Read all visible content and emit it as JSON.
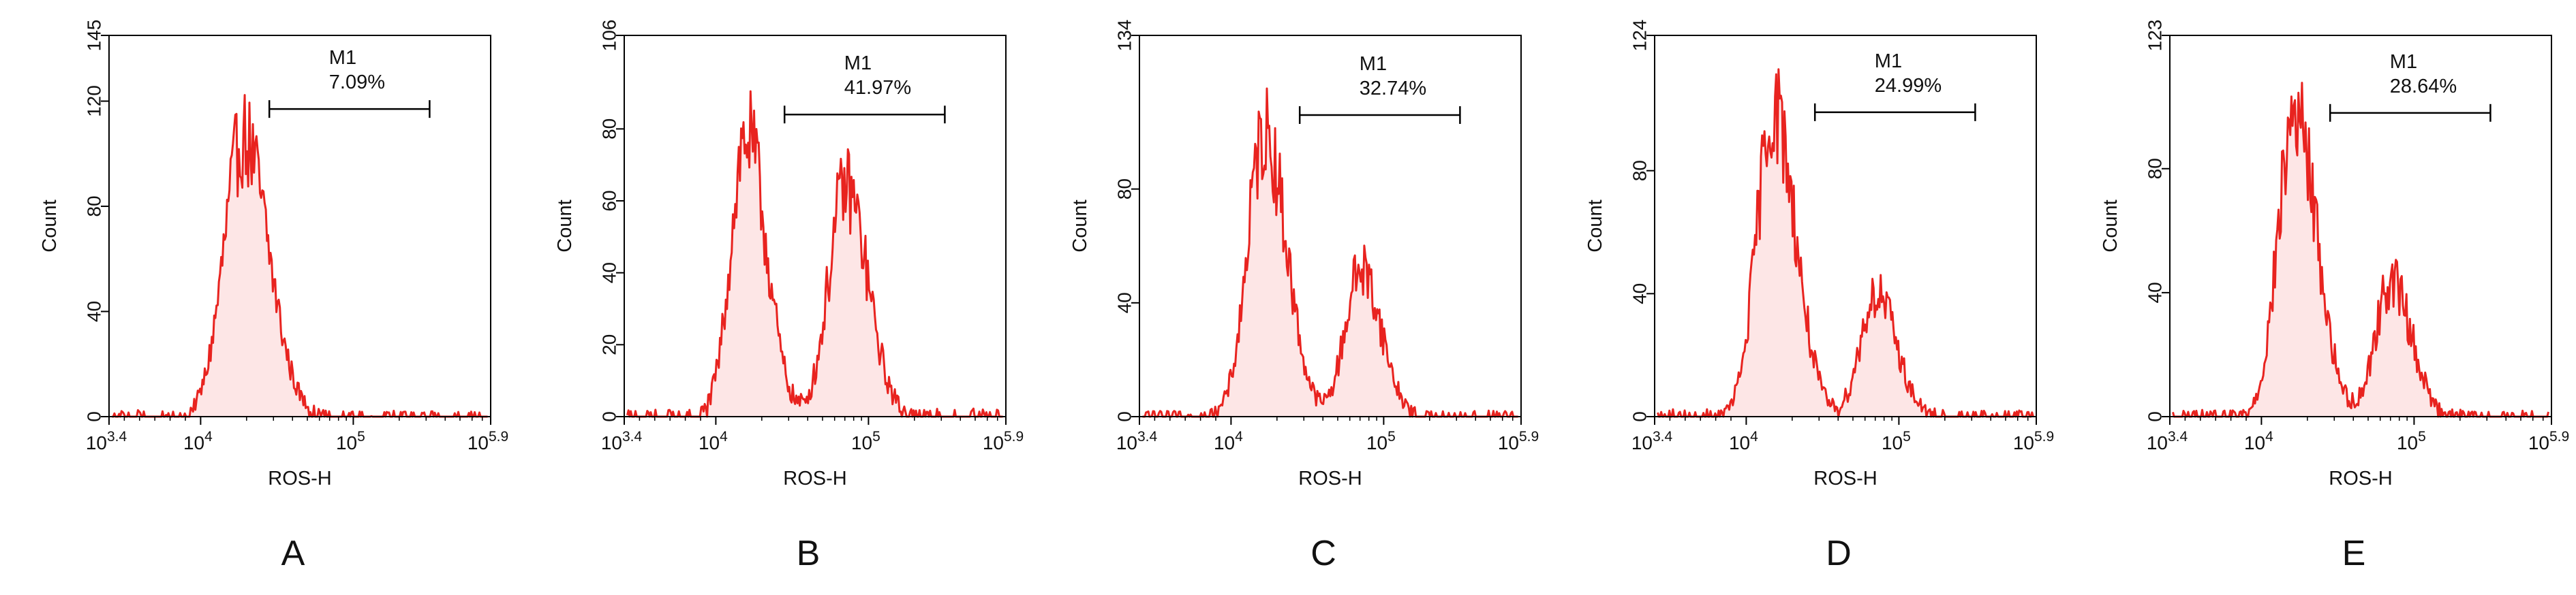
{
  "figure": {
    "colors": {
      "line": "#e8231f",
      "fill": "#fde6e6",
      "axis": "#000000"
    }
  },
  "chart_data": [
    {
      "type": "area",
      "panel_label": "A",
      "xlabel": "ROS-H",
      "ylabel": "Count",
      "x_scale": "log",
      "xlim_exp": [
        3.4,
        5.9
      ],
      "x_ticks": [
        {
          "base": "10",
          "exp": "3.4"
        },
        {
          "base": "10",
          "exp": "4"
        },
        {
          "base": "10",
          "exp": "5"
        },
        {
          "base": "10",
          "exp": "5.9"
        }
      ],
      "ylim": [
        0,
        145
      ],
      "y_ticks": [
        0,
        40,
        80,
        120,
        145
      ],
      "gate": {
        "name": "M1",
        "percent": "7.09%",
        "x_exp": [
          4.45,
          5.5
        ],
        "y": 117
      },
      "series": [
        {
          "peaks": [
            {
              "x_exp": 4.28,
              "height": 106,
              "width": 0.15
            }
          ],
          "max": 133
        }
      ]
    },
    {
      "type": "area",
      "panel_label": "B",
      "xlabel": "ROS-H",
      "ylabel": "Count",
      "x_scale": "log",
      "xlim_exp": [
        3.4,
        5.9
      ],
      "x_ticks": [
        {
          "base": "10",
          "exp": "3.4"
        },
        {
          "base": "10",
          "exp": "4"
        },
        {
          "base": "10",
          "exp": "5"
        },
        {
          "base": "10",
          "exp": "5.9"
        }
      ],
      "ylim": [
        0,
        106
      ],
      "y_ticks": [
        0,
        20,
        40,
        60,
        80,
        106
      ],
      "gate": {
        "name": "M1",
        "percent": "41.97%",
        "x_exp": [
          4.45,
          5.5
        ],
        "y": 84
      },
      "series": [
        {
          "peaks": [
            {
              "x_exp": 4.2,
              "height": 78,
              "width": 0.12
            },
            {
              "x_exp": 4.85,
              "height": 64,
              "width": 0.13
            }
          ],
          "max": 94
        }
      ]
    },
    {
      "type": "area",
      "panel_label": "C",
      "xlabel": "ROS-H",
      "ylabel": "Count",
      "x_scale": "log",
      "xlim_exp": [
        3.4,
        5.9
      ],
      "x_ticks": [
        {
          "base": "10",
          "exp": "3.4"
        },
        {
          "base": "10",
          "exp": "4"
        },
        {
          "base": "10",
          "exp": "5"
        },
        {
          "base": "10",
          "exp": "5.9"
        }
      ],
      "ylim": [
        0,
        134
      ],
      "y_ticks": [
        0,
        40,
        80,
        134
      ],
      "gate": {
        "name": "M1",
        "percent": "32.74%",
        "x_exp": [
          4.45,
          5.5
        ],
        "y": 106
      },
      "series": [
        {
          "peaks": [
            {
              "x_exp": 4.22,
              "height": 100,
              "width": 0.13
            },
            {
              "x_exp": 4.85,
              "height": 52,
              "width": 0.12
            }
          ],
          "max": 122
        }
      ]
    },
    {
      "type": "area",
      "panel_label": "D",
      "xlabel": "ROS-H",
      "ylabel": "Count",
      "x_scale": "log",
      "xlim_exp": [
        3.4,
        5.9
      ],
      "x_ticks": [
        {
          "base": "10",
          "exp": "3.4"
        },
        {
          "base": "10",
          "exp": "4"
        },
        {
          "base": "10",
          "exp": "5"
        },
        {
          "base": "10",
          "exp": "5.9"
        }
      ],
      "ylim": [
        0,
        124
      ],
      "y_ticks": [
        0,
        40,
        80,
        124
      ],
      "gate": {
        "name": "M1",
        "percent": "24.99%",
        "x_exp": [
          4.45,
          5.5
        ],
        "y": 99
      },
      "series": [
        {
          "peaks": [
            {
              "x_exp": 4.18,
              "height": 100,
              "width": 0.13
            },
            {
              "x_exp": 4.85,
              "height": 40,
              "width": 0.12
            }
          ],
          "max": 113
        }
      ]
    },
    {
      "type": "area",
      "panel_label": "E",
      "xlabel": "ROS-H",
      "ylabel": "Count",
      "x_scale": "log",
      "xlim_exp": [
        3.4,
        5.9
      ],
      "x_ticks": [
        {
          "base": "10",
          "exp": "3.4"
        },
        {
          "base": "10",
          "exp": "4"
        },
        {
          "base": "10",
          "exp": "5"
        },
        {
          "base": "10",
          "exp": "5.9"
        }
      ],
      "ylim": [
        0,
        123
      ],
      "y_ticks": [
        0,
        40,
        80,
        123
      ],
      "gate": {
        "name": "M1",
        "percent": "28.64%",
        "x_exp": [
          4.45,
          5.5
        ],
        "y": 98
      },
      "series": [
        {
          "peaks": [
            {
              "x_exp": 4.22,
              "height": 98,
              "width": 0.13
            },
            {
              "x_exp": 4.85,
              "height": 44,
              "width": 0.12
            }
          ],
          "max": 111
        }
      ]
    }
  ]
}
